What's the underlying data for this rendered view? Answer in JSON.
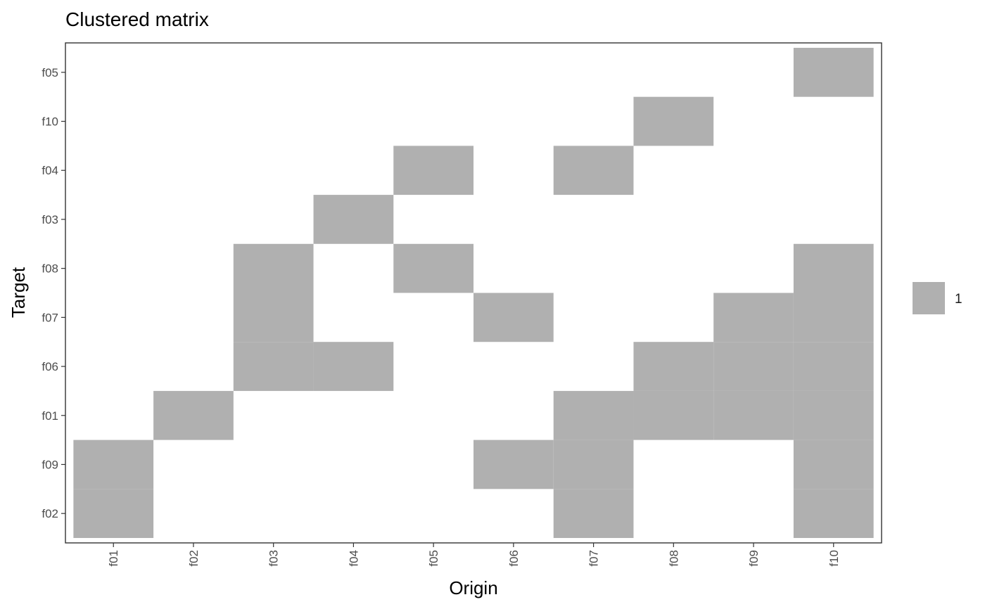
{
  "chart_data": {
    "type": "heatmap",
    "title": "Clustered matrix",
    "xlabel": "Origin",
    "ylabel": "Target",
    "x_categories": [
      "f01",
      "f02",
      "f03",
      "f04",
      "f05",
      "f06",
      "f07",
      "f08",
      "f09",
      "f10"
    ],
    "y_categories": [
      "f02",
      "f09",
      "f01",
      "f06",
      "f07",
      "f08",
      "f03",
      "f04",
      "f10",
      "f05"
    ],
    "cells": [
      {
        "x": "f01",
        "y": "f02",
        "value": 1
      },
      {
        "x": "f01",
        "y": "f09",
        "value": 1
      },
      {
        "x": "f02",
        "y": "f01",
        "value": 1
      },
      {
        "x": "f03",
        "y": "f06",
        "value": 1
      },
      {
        "x": "f03",
        "y": "f07",
        "value": 1
      },
      {
        "x": "f03",
        "y": "f08",
        "value": 1
      },
      {
        "x": "f04",
        "y": "f06",
        "value": 1
      },
      {
        "x": "f04",
        "y": "f03",
        "value": 1
      },
      {
        "x": "f05",
        "y": "f08",
        "value": 1
      },
      {
        "x": "f05",
        "y": "f04",
        "value": 1
      },
      {
        "x": "f06",
        "y": "f09",
        "value": 1
      },
      {
        "x": "f06",
        "y": "f07",
        "value": 1
      },
      {
        "x": "f07",
        "y": "f02",
        "value": 1
      },
      {
        "x": "f07",
        "y": "f09",
        "value": 1
      },
      {
        "x": "f07",
        "y": "f01",
        "value": 1
      },
      {
        "x": "f07",
        "y": "f04",
        "value": 1
      },
      {
        "x": "f08",
        "y": "f01",
        "value": 1
      },
      {
        "x": "f08",
        "y": "f06",
        "value": 1
      },
      {
        "x": "f08",
        "y": "f10",
        "value": 1
      },
      {
        "x": "f09",
        "y": "f01",
        "value": 1
      },
      {
        "x": "f09",
        "y": "f06",
        "value": 1
      },
      {
        "x": "f09",
        "y": "f07",
        "value": 1
      },
      {
        "x": "f10",
        "y": "f02",
        "value": 1
      },
      {
        "x": "f10",
        "y": "f09",
        "value": 1
      },
      {
        "x": "f10",
        "y": "f01",
        "value": 1
      },
      {
        "x": "f10",
        "y": "f06",
        "value": 1
      },
      {
        "x": "f10",
        "y": "f07",
        "value": 1
      },
      {
        "x": "f10",
        "y": "f08",
        "value": 1
      },
      {
        "x": "f10",
        "y": "f05",
        "value": 1
      }
    ],
    "legend": {
      "entries": [
        {
          "label": "1",
          "color": "#b0b0b0"
        }
      ],
      "placement": "right"
    },
    "colors": {
      "cell_fill": "#b0b0b0",
      "panel_border": "#333333",
      "tick_text": "#4d4d4d"
    },
    "grid": false
  }
}
